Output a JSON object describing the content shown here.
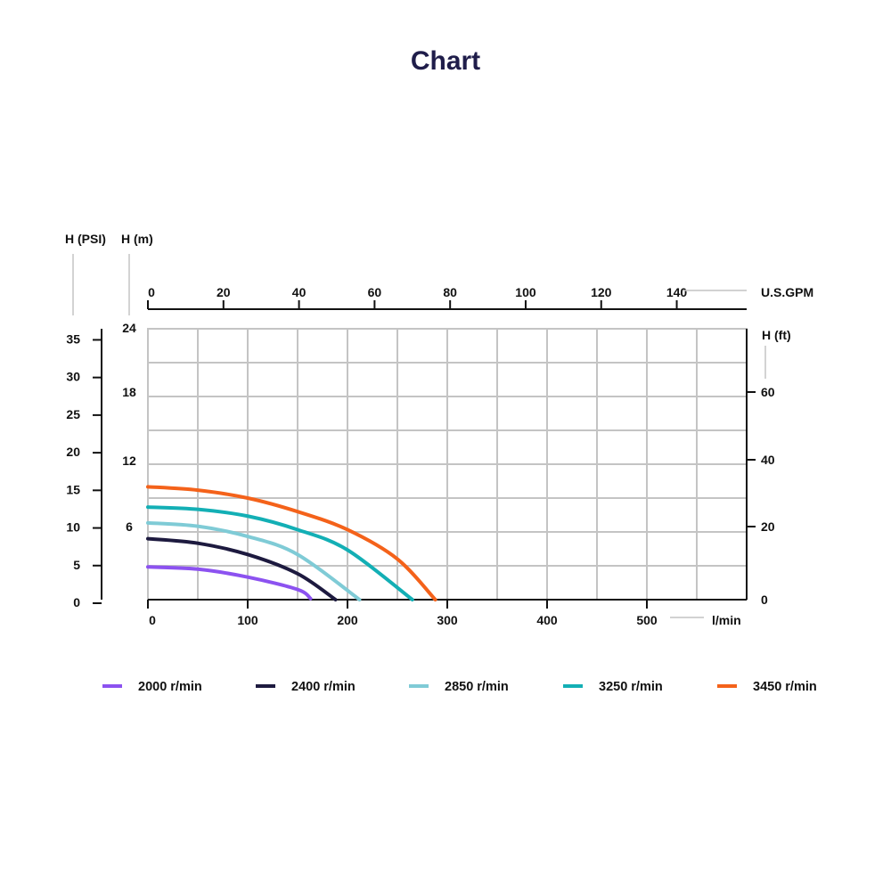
{
  "title": "Chart",
  "chart_data": {
    "type": "line",
    "title": "Chart",
    "x": {
      "label": "l/min",
      "ticks": [
        "0",
        "100",
        "200",
        "300",
        "400",
        "500"
      ],
      "range": [
        0,
        600
      ]
    },
    "x_top": {
      "label": "U.S.GPM",
      "ticks": [
        "0",
        "20",
        "40",
        "60",
        "80",
        "100",
        "120",
        "140"
      ]
    },
    "y_psi": {
      "label": "H (PSI)",
      "ticks": [
        "0",
        "5",
        "10",
        "15",
        "20",
        "25",
        "30",
        "35"
      ],
      "range": [
        0,
        36
      ]
    },
    "y_m": {
      "label": "H (m)",
      "ticks": [
        "6",
        "12",
        "18",
        "24"
      ],
      "range": [
        0,
        24
      ]
    },
    "y_ft": {
      "label": "H (ft)",
      "ticks": [
        "0",
        "20",
        "40",
        "60"
      ]
    },
    "grid": true,
    "legend_position": "bottom",
    "series": [
      {
        "name": "2000 r/min",
        "color": "#8c52f0",
        "x": [
          0,
          50,
          100,
          150,
          163
        ],
        "y_m": [
          2.9,
          2.7,
          2.0,
          0.9,
          0.1
        ]
      },
      {
        "name": "2400 r/min",
        "color": "#1d1a3f",
        "x": [
          0,
          50,
          100,
          150,
          188
        ],
        "y_m": [
          5.4,
          5.0,
          4.0,
          2.3,
          0.0
        ]
      },
      {
        "name": "2850 r/min",
        "color": "#7fcbd6",
        "x": [
          0,
          50,
          100,
          150,
          212
        ],
        "y_m": [
          6.8,
          6.5,
          5.6,
          4.0,
          0.0
        ]
      },
      {
        "name": "3250 r/min",
        "color": "#13afb5",
        "x": [
          0,
          50,
          100,
          150,
          200,
          265
        ],
        "y_m": [
          8.2,
          8.0,
          7.4,
          6.2,
          4.4,
          0.0
        ]
      },
      {
        "name": "3450 r/min",
        "color": "#f4621a",
        "x": [
          0,
          50,
          100,
          150,
          200,
          250,
          288
        ],
        "y_m": [
          10.0,
          9.7,
          9.0,
          7.8,
          6.2,
          3.6,
          0.0
        ]
      }
    ]
  }
}
